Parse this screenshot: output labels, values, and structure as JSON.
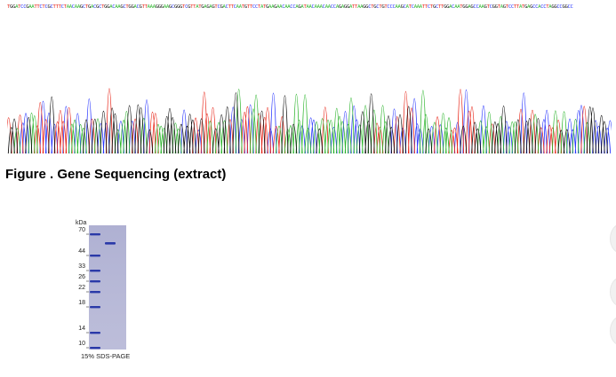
{
  "sequence_text": "TGGATCCGAATTCTCGCTTTCTAACAAGCTGACGCTGGACAAGCTGGACGTTAAAGGGAAGCGGGTCGTTATGAGAGTCGACTTCAATGTTCCTATGAAGAACAACCAGATAACAAACAACCAGAGGATTAAGGCTGCTGTCCCAAGCATCAAATTCTGCTTGGACAATGGAGCCAAGTCGGTAGTCCTTATGAGCCACCTAGGCCGGCC",
  "base_colors": {
    "A": "#2db52d",
    "C": "#2a37ff",
    "G": "#111111",
    "T": "#e8291c"
  },
  "figure_caption": "Figure . Gene Sequencing (extract)",
  "gel": {
    "unit_label": "kDa",
    "markers": [
      "70",
      "44",
      "33",
      "26",
      "22",
      "18",
      "14",
      "10"
    ],
    "caption": "15% SDS-PAGE"
  }
}
